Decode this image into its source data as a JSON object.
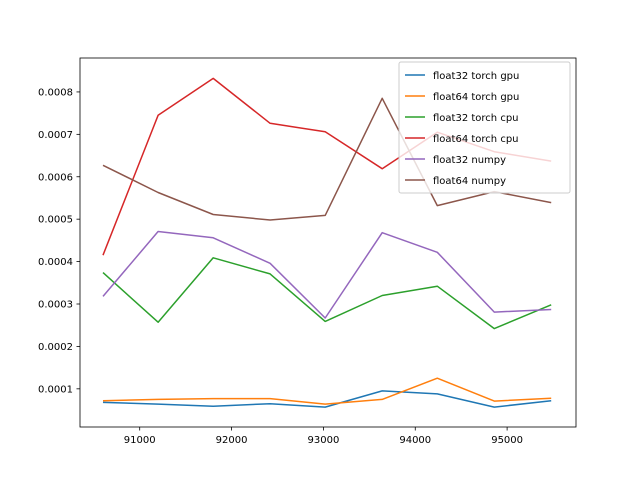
{
  "chart_data": {
    "type": "line",
    "title": "",
    "xlabel": "",
    "ylabel": "",
    "xlim": [
      90350,
      95750
    ],
    "ylim": [
      1e-05,
      0.00088
    ],
    "grid": false,
    "legend_placement": "top-right",
    "x": [
      90600,
      91200,
      91800,
      92420,
      93020,
      93640,
      94240,
      94860,
      95480
    ],
    "xticks": [
      {
        "value": 91000,
        "label": "91000"
      },
      {
        "value": 92000,
        "label": "92000"
      },
      {
        "value": 93000,
        "label": "93000"
      },
      {
        "value": 94000,
        "label": "94000"
      },
      {
        "value": 95000,
        "label": "95000"
      }
    ],
    "yticks": [
      {
        "value": 0.0001,
        "label": "0.0001"
      },
      {
        "value": 0.0002,
        "label": "0.0002"
      },
      {
        "value": 0.0003,
        "label": "0.0003"
      },
      {
        "value": 0.0004,
        "label": "0.0004"
      },
      {
        "value": 0.0005,
        "label": "0.0005"
      },
      {
        "value": 0.0006,
        "label": "0.0006"
      },
      {
        "value": 0.0007,
        "label": "0.0007"
      },
      {
        "value": 0.0008,
        "label": "0.0008"
      }
    ],
    "series": [
      {
        "name": "float32 torch gpu",
        "color": "#1f77b4",
        "values": [
          6.8e-05,
          6.4e-05,
          5.9e-05,
          6.5e-05,
          5.7e-05,
          9.5e-05,
          8.8e-05,
          5.7e-05,
          7.2e-05
        ]
      },
      {
        "name": "float64 torch gpu",
        "color": "#ff7f0e",
        "values": [
          7.2e-05,
          7.5e-05,
          7.7e-05,
          7.7e-05,
          6.4e-05,
          7.5e-05,
          0.000125,
          7.1e-05,
          7.8e-05
        ]
      },
      {
        "name": "float32 torch cpu",
        "color": "#2ca02c",
        "values": [
          0.000374,
          0.000257,
          0.000409,
          0.000371,
          0.000259,
          0.00032,
          0.000342,
          0.000242,
          0.000298
        ]
      },
      {
        "name": "float64 torch cpu",
        "color": "#d62728",
        "values": [
          0.000415,
          0.000745,
          0.000832,
          0.000726,
          0.000706,
          0.000619,
          0.000705,
          0.000659,
          0.000637
        ]
      },
      {
        "name": "float32 numpy",
        "color": "#9467bd",
        "values": [
          0.000318,
          0.000471,
          0.000456,
          0.000396,
          0.000267,
          0.000468,
          0.000422,
          0.000281,
          0.000287
        ]
      },
      {
        "name": "float64 numpy",
        "color": "#8c564b",
        "values": [
          0.000627,
          0.000563,
          0.000511,
          0.000498,
          0.000509,
          0.000785,
          0.000532,
          0.000565,
          0.000539
        ]
      }
    ]
  }
}
